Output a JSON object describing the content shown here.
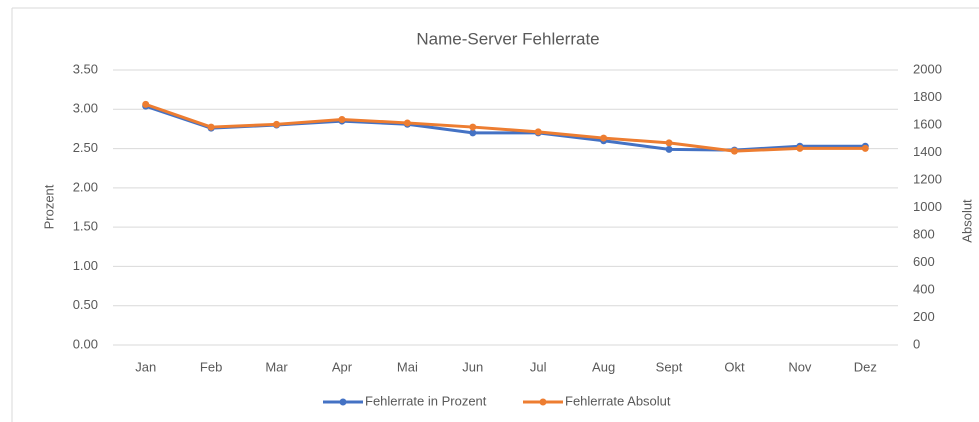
{
  "chart_data": {
    "type": "line",
    "title": "Name-Server Fehlerrate",
    "categories": [
      "Jan",
      "Feb",
      "Mar",
      "Apr",
      "Mai",
      "Jun",
      "Jul",
      "Aug",
      "Sept",
      "Okt",
      "Nov",
      "Dez"
    ],
    "series": [
      {
        "name": "Fehlerrate in Prozent",
        "color": "#4472c4",
        "values": [
          3.04,
          2.76,
          2.8,
          2.85,
          2.81,
          2.7,
          2.7,
          2.6,
          2.49,
          2.48,
          2.53,
          2.53
        ]
      },
      {
        "name": "Fehlerrate Absolut",
        "color": "#ed7d31",
        "axis": "y2",
        "values": [
          1750,
          1585,
          1605,
          1640,
          1615,
          1585,
          1550,
          1505,
          1470,
          1410,
          1430,
          1430
        ]
      }
    ],
    "ylabel": "Prozent",
    "y2label": "Absolut",
    "ylim": [
      0,
      3.5
    ],
    "yticks": [
      {
        "value": 0,
        "label": "0.00"
      },
      {
        "value": 0.5,
        "label": "0.50"
      },
      {
        "value": 1,
        "label": "1.00"
      },
      {
        "value": 1.5,
        "label": "1.50"
      },
      {
        "value": 2,
        "label": "2.00"
      },
      {
        "value": 2.5,
        "label": "2.50"
      },
      {
        "value": 3,
        "label": "3.00"
      },
      {
        "value": 3.5,
        "label": "3.50"
      }
    ],
    "y2lim": [
      0,
      2000
    ],
    "y2ticks": [
      0,
      200,
      400,
      600,
      800,
      1000,
      1200,
      1400,
      1600,
      1800,
      2000
    ],
    "grid": true,
    "legend": "bottom"
  }
}
